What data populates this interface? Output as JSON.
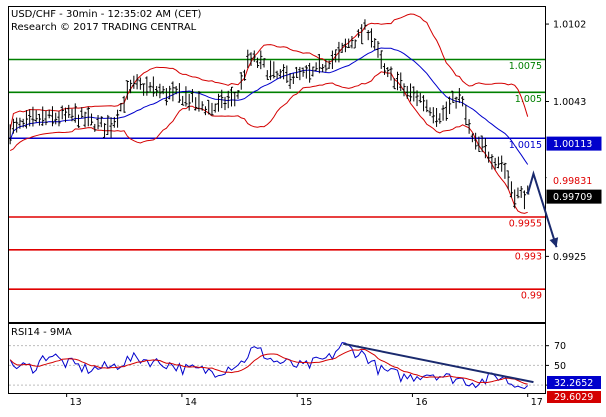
{
  "header": {
    "title": "USD/CHF - 30min - 12:35:02 AM (CET)",
    "subtitle": "Research © 2017 TRADING CENTRAL"
  },
  "colors": {
    "resistance": "#008000",
    "pivot": "#0000cc",
    "support": "#e00000",
    "bollinger": "#d40000",
    "moving_average": "#0000cc",
    "arrow": "#1a2a6e",
    "bars": "#000000",
    "rsi_line": "#0000cc",
    "rsi_ma": "#d40000",
    "current_price_box": "#000000",
    "rsi_box": "#0000cc",
    "rsi_ma_box": "#d40000"
  },
  "chart_data": [
    {
      "type": "ohlc",
      "title": "USD/CHF - 30min - 12:35:02 AM (CET)",
      "ylim": [
        0.9875,
        1.0115
      ],
      "xlim": [
        12.5,
        17.15
      ],
      "y_ticks": [
        1.0102,
        1.0043,
        0.9985,
        0.9925
      ],
      "y_tick_labels": [
        "1.0102",
        "1.0043",
        "",
        "0.9925"
      ],
      "levels": [
        {
          "value": 1.0075,
          "label": "1.0075",
          "kind": "resistance"
        },
        {
          "value": 1.005,
          "label": "1.005",
          "kind": "resistance"
        },
        {
          "value": 1.0015,
          "label": "1.0015",
          "kind": "pivot"
        },
        {
          "value": 0.9955,
          "label": "0.9955",
          "kind": "support"
        },
        {
          "value": 0.993,
          "label": "0.993",
          "kind": "support"
        },
        {
          "value": 0.99,
          "label": "0.99",
          "kind": "support"
        }
      ],
      "price_tags": [
        {
          "value": 1.00113,
          "label": "1.00113",
          "kind": "pivot"
        },
        {
          "value": 0.99831,
          "label": "0.99831",
          "kind": "support"
        },
        {
          "value": 0.99709,
          "label": "0.99709",
          "kind": "current"
        }
      ],
      "projection_arrow": {
        "points": [
          [
            17.05,
            0.9988
          ],
          [
            17.25,
            0.9932
          ]
        ]
      },
      "anchors": [
        {
          "x": 12.5,
          "price": 1.0022
        },
        {
          "x": 12.8,
          "price": 1.003
        },
        {
          "x": 13.05,
          "price": 1.0032
        },
        {
          "x": 13.35,
          "price": 1.0024
        },
        {
          "x": 13.6,
          "price": 1.0055
        },
        {
          "x": 13.95,
          "price": 1.0048
        },
        {
          "x": 14.25,
          "price": 1.0038
        },
        {
          "x": 14.45,
          "price": 1.0045
        },
        {
          "x": 14.6,
          "price": 1.0075
        },
        {
          "x": 14.85,
          "price": 1.0062
        },
        {
          "x": 15.1,
          "price": 1.0063
        },
        {
          "x": 15.3,
          "price": 1.0075
        },
        {
          "x": 15.5,
          "price": 1.009
        },
        {
          "x": 15.6,
          "price": 1.0098
        },
        {
          "x": 15.8,
          "price": 1.0062
        },
        {
          "x": 16.0,
          "price": 1.0048
        },
        {
          "x": 16.25,
          "price": 1.0033
        },
        {
          "x": 16.4,
          "price": 1.0046
        },
        {
          "x": 16.55,
          "price": 1.001
        },
        {
          "x": 16.75,
          "price": 0.9998
        },
        {
          "x": 16.9,
          "price": 0.9972
        },
        {
          "x": 17.0,
          "price": 0.9972
        }
      ]
    },
    {
      "type": "line",
      "title": "RSI14 - 9MA",
      "ylim": [
        22,
        92
      ],
      "y_ticks": [
        70,
        50,
        30
      ],
      "y_tick_labels": [
        "70",
        "50",
        "30"
      ],
      "series": [
        {
          "name": "RSI14",
          "value_tag": "32.2652"
        },
        {
          "name": "9MA",
          "value_tag": "29.6029"
        }
      ],
      "anchors": [
        {
          "x": 12.5,
          "value": 50
        },
        {
          "x": 12.7,
          "value": 48
        },
        {
          "x": 12.85,
          "value": 61
        },
        {
          "x": 13.0,
          "value": 52
        },
        {
          "x": 13.2,
          "value": 46
        },
        {
          "x": 13.35,
          "value": 48
        },
        {
          "x": 13.6,
          "value": 57
        },
        {
          "x": 13.85,
          "value": 52
        },
        {
          "x": 14.05,
          "value": 46
        },
        {
          "x": 14.3,
          "value": 44
        },
        {
          "x": 14.5,
          "value": 52
        },
        {
          "x": 14.62,
          "value": 66
        },
        {
          "x": 14.85,
          "value": 53
        },
        {
          "x": 15.05,
          "value": 49
        },
        {
          "x": 15.25,
          "value": 56
        },
        {
          "x": 15.4,
          "value": 70
        },
        {
          "x": 15.55,
          "value": 62
        },
        {
          "x": 15.75,
          "value": 44
        },
        {
          "x": 15.95,
          "value": 38
        },
        {
          "x": 16.15,
          "value": 42
        },
        {
          "x": 16.35,
          "value": 37
        },
        {
          "x": 16.55,
          "value": 33
        },
        {
          "x": 16.75,
          "value": 39
        },
        {
          "x": 16.9,
          "value": 30
        },
        {
          "x": 17.0,
          "value": 33
        }
      ],
      "trend_line": {
        "points": [
          [
            15.4,
            72
          ],
          [
            17.05,
            33
          ]
        ]
      }
    }
  ],
  "x_axis": {
    "ticks": [
      13,
      14,
      15,
      16,
      17
    ],
    "tick_labels": [
      "13",
      "14",
      "15",
      "16",
      "17"
    ]
  }
}
